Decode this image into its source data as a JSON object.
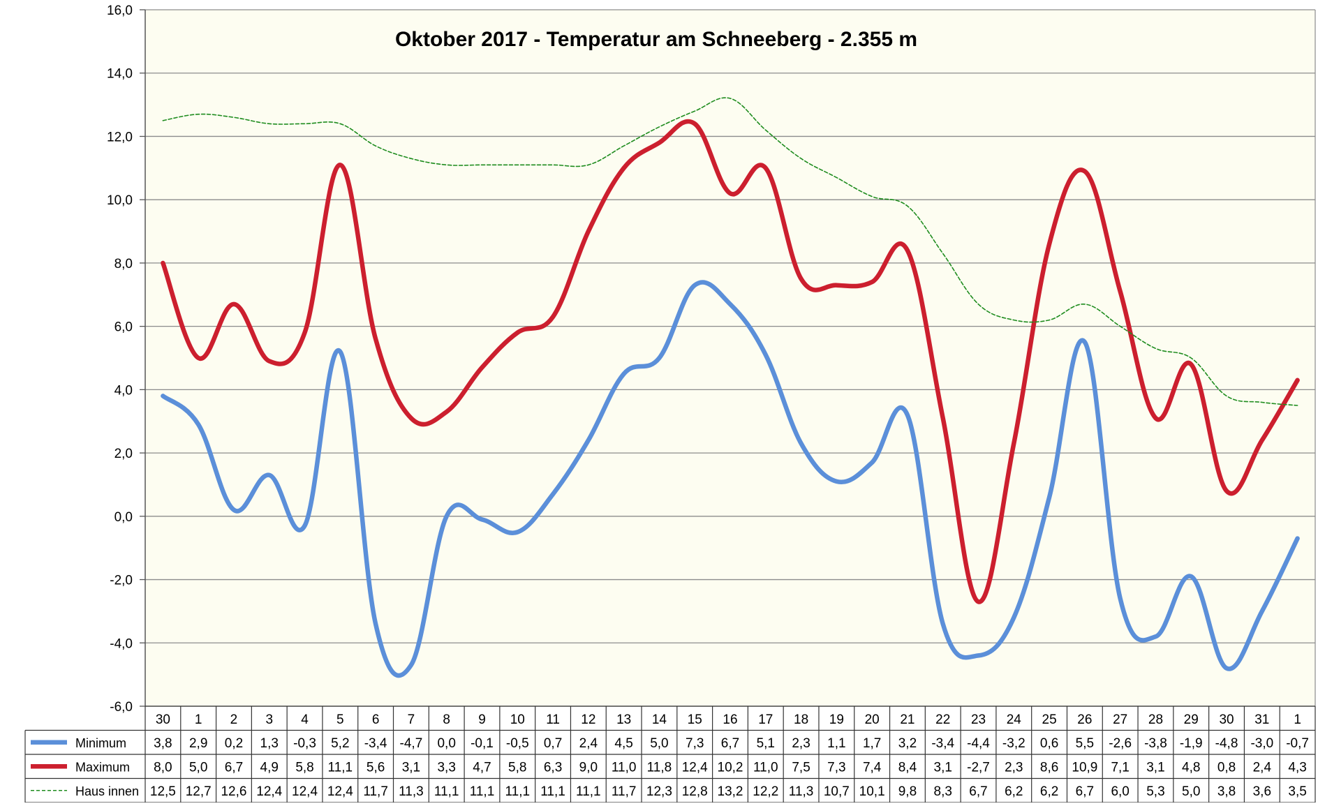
{
  "chart_data": {
    "type": "line",
    "title": "Oktober 2017 - Temperatur am Schneeberg - 2.355 m",
    "xlabel": "",
    "ylabel": "",
    "ylim": [
      -6,
      16
    ],
    "ytick_step": 2,
    "ytick_labels": [
      "-6,0",
      "-4,0",
      "-2,0",
      "0,0",
      "2,0",
      "4,0",
      "6,0",
      "8,0",
      "10,0",
      "12,0",
      "14,0",
      "16,0"
    ],
    "grid": true,
    "legend": "data-table-left",
    "categories": [
      "30",
      "1",
      "2",
      "3",
      "4",
      "5",
      "6",
      "7",
      "8",
      "9",
      "10",
      "11",
      "12",
      "13",
      "14",
      "15",
      "16",
      "17",
      "18",
      "19",
      "20",
      "21",
      "22",
      "23",
      "24",
      "25",
      "26",
      "27",
      "28",
      "29",
      "30",
      "31",
      "1"
    ],
    "series": [
      {
        "name": "Minimum",
        "color": "#5b8fd9",
        "style": "solid-thick",
        "values": [
          3.8,
          2.9,
          0.2,
          1.3,
          -0.3,
          5.2,
          -3.4,
          -4.7,
          0.0,
          -0.1,
          -0.5,
          0.7,
          2.4,
          4.5,
          5.0,
          7.3,
          6.7,
          5.1,
          2.3,
          1.1,
          1.7,
          3.2,
          -3.4,
          -4.4,
          -3.2,
          0.6,
          5.5,
          -2.6,
          -3.8,
          -1.9,
          -4.8,
          -3.0,
          -0.7
        ],
        "labels": [
          "3,8",
          "2,9",
          "0,2",
          "1,3",
          "-0,3",
          "5,2",
          "-3,4",
          "-4,7",
          "0,0",
          "-0,1",
          "-0,5",
          "0,7",
          "2,4",
          "4,5",
          "5,0",
          "7,3",
          "6,7",
          "5,1",
          "2,3",
          "1,1",
          "1,7",
          "3,2",
          "-3,4",
          "-4,4",
          "-3,2",
          "0,6",
          "5,5",
          "-2,6",
          "-3,8",
          "-1,9",
          "-4,8",
          "-3,0",
          "-0,7"
        ]
      },
      {
        "name": "Maximum",
        "color": "#cc1f2e",
        "style": "solid-thick",
        "values": [
          8.0,
          5.0,
          6.7,
          4.9,
          5.8,
          11.1,
          5.6,
          3.1,
          3.3,
          4.7,
          5.8,
          6.3,
          9.0,
          11.0,
          11.8,
          12.4,
          10.2,
          11.0,
          7.5,
          7.3,
          7.4,
          8.4,
          3.1,
          -2.7,
          2.3,
          8.6,
          10.9,
          7.1,
          3.1,
          4.8,
          0.8,
          2.4,
          4.3
        ],
        "labels": [
          "8,0",
          "5,0",
          "6,7",
          "4,9",
          "5,8",
          "11,1",
          "5,6",
          "3,1",
          "3,3",
          "4,7",
          "5,8",
          "6,3",
          "9,0",
          "11,0",
          "11,8",
          "12,4",
          "10,2",
          "11,0",
          "7,5",
          "7,3",
          "7,4",
          "8,4",
          "3,1",
          "-2,7",
          "2,3",
          "8,6",
          "10,9",
          "7,1",
          "3,1",
          "4,8",
          "0,8",
          "2,4",
          "4,3"
        ]
      },
      {
        "name": "Haus innen",
        "color": "#1e8c1e",
        "style": "dashed-thin",
        "values": [
          12.5,
          12.7,
          12.6,
          12.4,
          12.4,
          12.4,
          11.7,
          11.3,
          11.1,
          11.1,
          11.1,
          11.1,
          11.1,
          11.7,
          12.3,
          12.8,
          13.2,
          12.2,
          11.3,
          10.7,
          10.1,
          9.8,
          8.3,
          6.7,
          6.2,
          6.2,
          6.7,
          6.0,
          5.3,
          5.0,
          3.8,
          3.6,
          3.5
        ],
        "labels": [
          "12,5",
          "12,7",
          "12,6",
          "12,4",
          "12,4",
          "12,4",
          "11,7",
          "11,3",
          "11,1",
          "11,1",
          "11,1",
          "11,1",
          "11,1",
          "11,7",
          "12,3",
          "12,8",
          "13,2",
          "12,2",
          "11,3",
          "10,7",
          "10,1",
          "9,8",
          "8,3",
          "6,7",
          "6,2",
          "6,2",
          "6,7",
          "6,0",
          "5,3",
          "5,0",
          "3,8",
          "3,6",
          "3,5"
        ]
      }
    ]
  }
}
